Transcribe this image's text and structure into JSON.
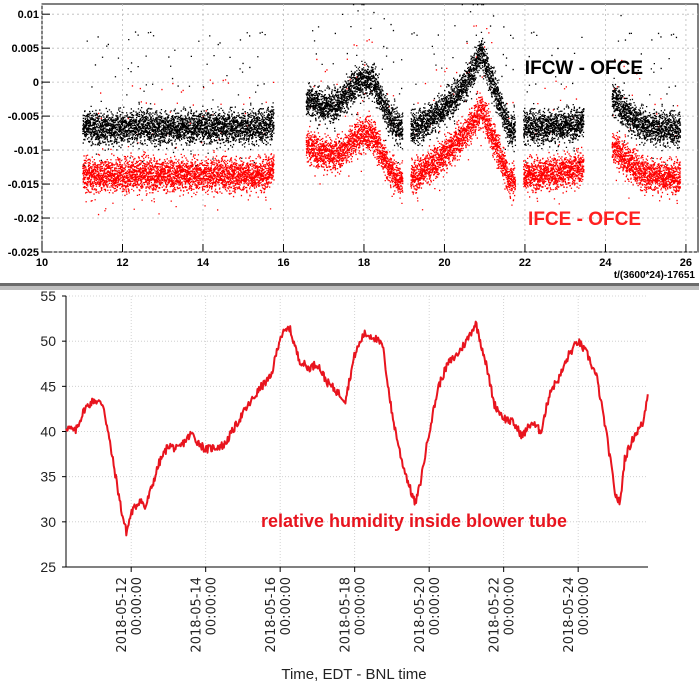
{
  "chart_data": [
    {
      "type": "scatter",
      "title": "",
      "xlabel": "t/(3600*24)-17651",
      "ylabel": "",
      "xlim": [
        10,
        26.3
      ],
      "ylim": [
        -0.025,
        0.0115
      ],
      "x_ticks": [
        10,
        12,
        14,
        16,
        18,
        20,
        22,
        24,
        26
      ],
      "x_tick_labels": [
        "10",
        "12",
        "14",
        "16",
        "18",
        "20",
        "22",
        "24",
        "26"
      ],
      "y_ticks": [
        -0.025,
        -0.02,
        -0.015,
        -0.01,
        -0.005,
        0,
        0.005,
        0.01
      ],
      "y_tick_labels": [
        "-0.025",
        "-0.02",
        "-0.015",
        "-0.01",
        "-0.005",
        "0",
        "0.005",
        "0.01"
      ],
      "grid": true,
      "series": [
        {
          "name": "IFCW - OFCE",
          "color": "#000000",
          "points": [
            [
              11.0,
              -0.0065
            ],
            [
              11.5,
              -0.0068
            ],
            [
              12.0,
              -0.0066
            ],
            [
              12.5,
              -0.0064
            ],
            [
              13.0,
              -0.0067
            ],
            [
              13.5,
              -0.0065
            ],
            [
              14.0,
              -0.0066
            ],
            [
              14.5,
              -0.0065
            ],
            [
              15.0,
              -0.0066
            ],
            [
              15.5,
              -0.0065
            ],
            [
              16.6,
              -0.0025
            ],
            [
              17.0,
              -0.0035
            ],
            [
              17.4,
              -0.003
            ],
            [
              17.8,
              0.0
            ],
            [
              18.2,
              0.0005
            ],
            [
              18.6,
              -0.005
            ],
            [
              18.9,
              -0.007
            ],
            [
              19.3,
              -0.0065
            ],
            [
              19.6,
              -0.0055
            ],
            [
              20.0,
              -0.0035
            ],
            [
              20.5,
              -0.0005
            ],
            [
              20.9,
              0.0045
            ],
            [
              21.3,
              -0.002
            ],
            [
              21.6,
              -0.007
            ],
            [
              22.0,
              -0.0065
            ],
            [
              22.5,
              -0.0065
            ],
            [
              23.0,
              -0.0062
            ],
            [
              23.4,
              -0.006
            ],
            [
              24.2,
              -0.0025
            ],
            [
              24.6,
              -0.005
            ],
            [
              25.0,
              -0.0065
            ],
            [
              25.5,
              -0.0068
            ]
          ]
        },
        {
          "name": "IFCE - OFCE",
          "color": "#ff0000",
          "points": [
            [
              11.0,
              -0.0135
            ],
            [
              11.5,
              -0.0138
            ],
            [
              12.0,
              -0.0136
            ],
            [
              12.5,
              -0.0134
            ],
            [
              13.0,
              -0.0137
            ],
            [
              13.5,
              -0.0135
            ],
            [
              14.0,
              -0.0136
            ],
            [
              14.5,
              -0.0135
            ],
            [
              15.0,
              -0.0136
            ],
            [
              15.5,
              -0.0135
            ],
            [
              16.6,
              -0.0095
            ],
            [
              17.0,
              -0.0105
            ],
            [
              17.4,
              -0.0105
            ],
            [
              17.8,
              -0.008
            ],
            [
              18.2,
              -0.0075
            ],
            [
              18.6,
              -0.0125
            ],
            [
              18.9,
              -0.0145
            ],
            [
              19.3,
              -0.0135
            ],
            [
              19.6,
              -0.0125
            ],
            [
              20.0,
              -0.0105
            ],
            [
              20.5,
              -0.0075
            ],
            [
              20.9,
              -0.004
            ],
            [
              21.3,
              -0.0095
            ],
            [
              21.6,
              -0.0145
            ],
            [
              22.0,
              -0.0135
            ],
            [
              22.5,
              -0.0135
            ],
            [
              23.0,
              -0.013
            ],
            [
              23.4,
              -0.0125
            ],
            [
              24.2,
              -0.0095
            ],
            [
              24.6,
              -0.012
            ],
            [
              25.0,
              -0.0135
            ],
            [
              25.5,
              -0.0138
            ]
          ]
        }
      ],
      "annotations": [
        {
          "text": "IFCW - OFCE",
          "color": "#000000"
        },
        {
          "text": "IFCE - OFCE",
          "color": "#ff2020"
        }
      ]
    },
    {
      "type": "line",
      "title": "",
      "xlabel": "Time, EDT - BNL time",
      "ylabel": "",
      "xlim": [
        "2018-05-10 06:00",
        "2018-05-25 21:00"
      ],
      "ylim": [
        25,
        55
      ],
      "x_ticks": [
        "2018-05-12 00:00:00",
        "2018-05-14 00:00:00",
        "2018-05-16 00:00:00",
        "2018-05-18 00:00:00",
        "2018-05-20 00:00:00",
        "2018-05-22 00:00:00",
        "2018-05-24 00:00:00"
      ],
      "x_tick_dates": [
        "2018-05-12",
        "2018-05-14",
        "2018-05-16",
        "2018-05-18",
        "2018-05-20",
        "2018-05-22",
        "2018-05-24"
      ],
      "x_tick_times": [
        "00:00:00",
        "00:00:00",
        "00:00:00",
        "00:00:00",
        "00:00:00",
        "00:00:00",
        "00:00:00"
      ],
      "y_ticks": [
        25,
        30,
        35,
        40,
        45,
        50,
        55
      ],
      "y_tick_labels": [
        "25",
        "30",
        "35",
        "40",
        "45",
        "50",
        "55"
      ],
      "grid": true,
      "series": [
        {
          "name": "relative humidity inside blower tube",
          "color": "#e8141e",
          "points": [
            [
              "2018-05-10 06:00",
              40.5
            ],
            [
              "2018-05-10 12:00",
              40.0
            ],
            [
              "2018-05-10 18:00",
              42.5
            ],
            [
              "2018-05-11 00:00",
              43.5
            ],
            [
              "2018-05-11 06:00",
              43.0
            ],
            [
              "2018-05-11 12:00",
              37.0
            ],
            [
              "2018-05-11 18:00",
              31.0
            ],
            [
              "2018-05-11 21:00",
              28.8
            ],
            [
              "2018-05-12 00:00",
              31.0
            ],
            [
              "2018-05-12 06:00",
              32.5
            ],
            [
              "2018-05-12 09:00",
              31.5
            ],
            [
              "2018-05-12 18:00",
              36.5
            ],
            [
              "2018-05-13 00:00",
              38.5
            ],
            [
              "2018-05-13 06:00",
              38.0
            ],
            [
              "2018-05-13 15:00",
              39.8
            ],
            [
              "2018-05-13 18:00",
              39.0
            ],
            [
              "2018-05-14 00:00",
              38.0
            ],
            [
              "2018-05-14 12:00",
              38.5
            ],
            [
              "2018-05-15 00:00",
              42.0
            ],
            [
              "2018-05-15 12:00",
              45.0
            ],
            [
              "2018-05-15 18:00",
              46.0
            ],
            [
              "2018-05-16 00:00",
              50.5
            ],
            [
              "2018-05-16 06:00",
              51.5
            ],
            [
              "2018-05-16 12:00",
              48.0
            ],
            [
              "2018-05-16 18:00",
              47.0
            ],
            [
              "2018-05-17 00:00",
              47.5
            ],
            [
              "2018-05-17 06:00",
              45.5
            ],
            [
              "2018-05-17 12:00",
              44.5
            ],
            [
              "2018-05-17 18:00",
              43.5
            ],
            [
              "2018-05-18 00:00",
              48.5
            ],
            [
              "2018-05-18 06:00",
              50.8
            ],
            [
              "2018-05-18 12:00",
              50.5
            ],
            [
              "2018-05-18 18:00",
              49.5
            ],
            [
              "2018-05-19 00:00",
              42.0
            ],
            [
              "2018-05-19 06:00",
              37.0
            ],
            [
              "2018-05-19 12:00",
              33.5
            ],
            [
              "2018-05-19 15:00",
              32.0
            ],
            [
              "2018-05-19 18:00",
              34.0
            ],
            [
              "2018-05-20 00:00",
              40.0
            ],
            [
              "2018-05-20 06:00",
              45.0
            ],
            [
              "2018-05-20 12:00",
              47.5
            ],
            [
              "2018-05-20 18:00",
              48.5
            ],
            [
              "2018-05-21 00:00",
              50.0
            ],
            [
              "2018-05-21 06:00",
              52.0
            ],
            [
              "2018-05-21 12:00",
              48.0
            ],
            [
              "2018-05-21 18:00",
              43.0
            ],
            [
              "2018-05-22 00:00",
              41.5
            ],
            [
              "2018-05-22 06:00",
              41.0
            ],
            [
              "2018-05-22 12:00",
              39.5
            ],
            [
              "2018-05-22 18:00",
              41.0
            ],
            [
              "2018-05-23 00:00",
              40.0
            ],
            [
              "2018-05-23 06:00",
              44.5
            ],
            [
              "2018-05-23 12:00",
              46.0
            ],
            [
              "2018-05-23 18:00",
              48.5
            ],
            [
              "2018-05-24 00:00",
              50.0
            ],
            [
              "2018-05-24 06:00",
              48.5
            ],
            [
              "2018-05-24 12:00",
              46.0
            ],
            [
              "2018-05-24 18:00",
              40.0
            ],
            [
              "2018-05-25 00:00",
              33.0
            ],
            [
              "2018-05-25 03:00",
              32.0
            ],
            [
              "2018-05-25 06:00",
              37.0
            ],
            [
              "2018-05-25 12:00",
              39.5
            ],
            [
              "2018-05-25 18:00",
              41.0
            ],
            [
              "2018-05-25 21:00",
              44.5
            ]
          ]
        }
      ],
      "annotations": [
        {
          "text": "relative humidity inside blower tube",
          "color": "#e8141e"
        }
      ]
    }
  ]
}
